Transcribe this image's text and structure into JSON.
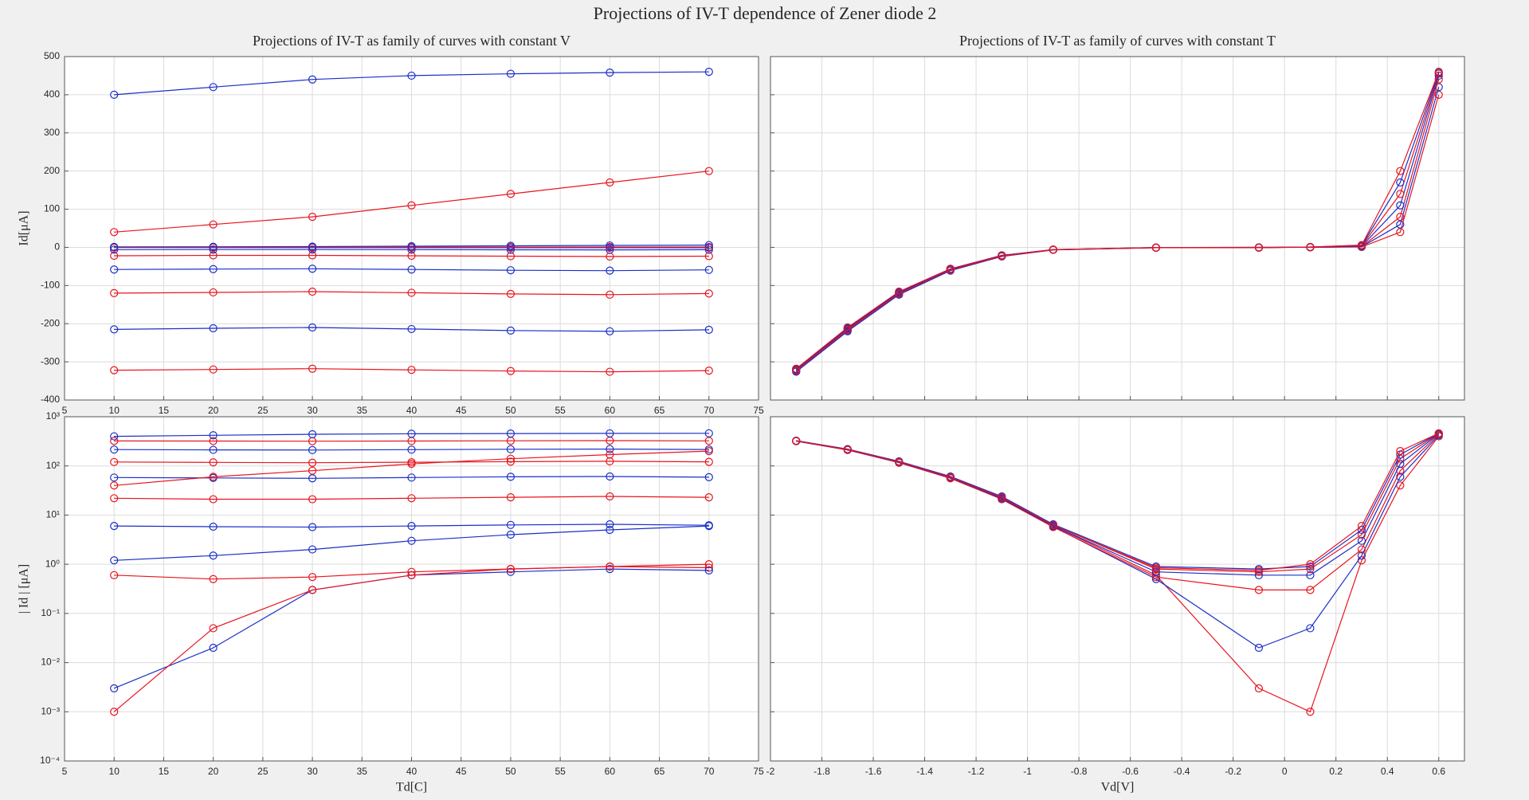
{
  "title": "Projections of IV-T dependence of Zener diode 2",
  "chart_data": [
    {
      "type": "line",
      "title": "Projections of IV-T as family of curves with constant V",
      "xlabel": "Td[C]",
      "ylabel": "Id[μA]",
      "x": [
        10,
        20,
        30,
        40,
        50,
        60,
        70
      ],
      "xlim": [
        5,
        75
      ],
      "xticks": [
        5,
        10,
        15,
        20,
        25,
        30,
        35,
        40,
        45,
        50,
        55,
        60,
        65,
        70,
        75
      ],
      "ylim": [
        -400,
        500
      ],
      "yticks": [
        -400,
        -300,
        -200,
        -100,
        0,
        100,
        200,
        300,
        400,
        500
      ],
      "grid": true,
      "marker": "o",
      "series": [
        {
          "color": "#e8141e",
          "values": [
            -322,
            -320,
            -318,
            -321,
            -324,
            -326,
            -323
          ]
        },
        {
          "color": "#1a2fc8",
          "values": [
            -215,
            -212,
            -210,
            -214,
            -218,
            -220,
            -216
          ]
        },
        {
          "color": "#e8141e",
          "values": [
            -120,
            -118,
            -116,
            -119,
            -122,
            -124,
            -121
          ]
        },
        {
          "color": "#1a2fc8",
          "values": [
            -58,
            -57,
            -56,
            -58,
            -60,
            -61,
            -59
          ]
        },
        {
          "color": "#e8141e",
          "values": [
            -22,
            -21,
            -21,
            -22,
            -23,
            -24,
            -23
          ]
        },
        {
          "color": "#1a2fc8",
          "values": [
            -6,
            -5.8,
            -5.7,
            -6,
            -6.3,
            -6.5,
            -6.2
          ]
        },
        {
          "color": "#e8141e",
          "values": [
            -0.6,
            -0.5,
            -0.55,
            -0.7,
            -0.8,
            -0.9,
            -0.85
          ]
        },
        {
          "color": "#1a2fc8",
          "values": [
            -0.003,
            -0.02,
            -0.3,
            -0.6,
            -0.7,
            -0.8,
            -0.75
          ]
        },
        {
          "color": "#e8141e",
          "values": [
            0.001,
            0.05,
            0.3,
            0.6,
            0.8,
            0.9,
            1
          ]
        },
        {
          "color": "#1a2fc8",
          "values": [
            1.2,
            1.5,
            2,
            3,
            4,
            5,
            6
          ]
        },
        {
          "color": "#e8141e",
          "values": [
            40,
            60,
            80,
            110,
            140,
            170,
            200
          ]
        },
        {
          "color": "#1a2fc8",
          "values": [
            400,
            420,
            440,
            450,
            455,
            458,
            460
          ]
        }
      ]
    },
    {
      "type": "line",
      "title": "Projections of IV-T as family of curves with constant T",
      "x": [
        -1.9,
        -1.7,
        -1.5,
        -1.3,
        -1.1,
        -0.9,
        -0.5,
        -0.1,
        0.1,
        0.3,
        0.45,
        0.6
      ],
      "xlim": [
        -2,
        0.7
      ],
      "xticks": [
        -2,
        -1.8,
        -1.6,
        -1.4,
        -1.2,
        -1,
        -0.8,
        -0.6,
        -0.4,
        -0.2,
        0,
        0.2,
        0.4,
        0.6
      ],
      "show_xtick_labels": false,
      "ylim": [
        -400,
        500
      ],
      "yticks": [
        -400,
        -300,
        -200,
        -100,
        0,
        100,
        200,
        300,
        400,
        500
      ],
      "show_ytick_labels": false,
      "grid": true,
      "marker": "o",
      "series": [
        {
          "color": "#e8141e",
          "values": [
            -322,
            -215,
            -120,
            -58,
            -22,
            -6,
            -0.6,
            -0.003,
            0.001,
            1.2,
            40,
            400
          ]
        },
        {
          "color": "#1a2fc8",
          "values": [
            -320,
            -212,
            -118,
            -57,
            -21,
            -5.8,
            -0.5,
            -0.02,
            0.05,
            1.5,
            60,
            420
          ]
        },
        {
          "color": "#e8141e",
          "values": [
            -318,
            -210,
            -116,
            -56,
            -21,
            -5.7,
            -0.55,
            -0.3,
            0.3,
            2,
            80,
            440
          ]
        },
        {
          "color": "#1a2fc8",
          "values": [
            -321,
            -214,
            -119,
            -58,
            -22,
            -6,
            -0.7,
            -0.6,
            0.6,
            3,
            110,
            450
          ]
        },
        {
          "color": "#e8141e",
          "values": [
            -324,
            -218,
            -122,
            -60,
            -23,
            -6.3,
            -0.8,
            -0.7,
            0.8,
            4,
            140,
            455
          ]
        },
        {
          "color": "#1a2fc8",
          "values": [
            -326,
            -220,
            -124,
            -61,
            -24,
            -6.5,
            -0.9,
            -0.8,
            0.9,
            5,
            170,
            458
          ]
        },
        {
          "color": "#e8141e",
          "values": [
            -323,
            -216,
            -121,
            -59,
            -23,
            -6.2,
            -0.85,
            -0.75,
            1,
            6,
            200,
            460
          ]
        }
      ]
    },
    {
      "type": "line",
      "xlabel": "Td[C]",
      "ylabel": "| Id | [μA]",
      "x": [
        10,
        20,
        30,
        40,
        50,
        60,
        70
      ],
      "xlim": [
        5,
        75
      ],
      "xticks": [
        5,
        10,
        15,
        20,
        25,
        30,
        35,
        40,
        45,
        50,
        55,
        60,
        65,
        70,
        75
      ],
      "yscale": "log",
      "ylim": [
        0.0001,
        1000
      ],
      "yticks": [
        {
          "value": 0.0001,
          "label": "10⁻⁴"
        },
        {
          "value": 0.001,
          "label": "10⁻³"
        },
        {
          "value": 0.01,
          "label": "10⁻²"
        },
        {
          "value": 0.1,
          "label": "10⁻¹"
        },
        {
          "value": 1,
          "label": "10⁰"
        },
        {
          "value": 10,
          "label": "10¹"
        },
        {
          "value": 100,
          "label": "10²"
        },
        {
          "value": 1000,
          "label": "10³"
        }
      ],
      "grid": true,
      "marker": "o",
      "series": [
        {
          "color": "#e8141e",
          "values": [
            322,
            320,
            318,
            321,
            324,
            326,
            323
          ]
        },
        {
          "color": "#1a2fc8",
          "values": [
            215,
            212,
            210,
            214,
            218,
            220,
            216
          ]
        },
        {
          "color": "#e8141e",
          "values": [
            120,
            118,
            116,
            119,
            122,
            124,
            121
          ]
        },
        {
          "color": "#1a2fc8",
          "values": [
            58,
            57,
            56,
            58,
            60,
            61,
            59
          ]
        },
        {
          "color": "#e8141e",
          "values": [
            22,
            21,
            21,
            22,
            23,
            24,
            23
          ]
        },
        {
          "color": "#1a2fc8",
          "values": [
            6,
            5.8,
            5.7,
            6,
            6.3,
            6.5,
            6.2
          ]
        },
        {
          "color": "#e8141e",
          "values": [
            0.6,
            0.5,
            0.55,
            0.7,
            0.8,
            0.9,
            0.85
          ]
        },
        {
          "color": "#1a2fc8",
          "values": [
            0.003,
            0.02,
            0.3,
            0.6,
            0.7,
            0.8,
            0.75
          ]
        },
        {
          "color": "#e8141e",
          "values": [
            0.001,
            0.05,
            0.3,
            0.6,
            0.8,
            0.9,
            1
          ]
        },
        {
          "color": "#1a2fc8",
          "values": [
            1.2,
            1.5,
            2,
            3,
            4,
            5,
            6
          ]
        },
        {
          "color": "#e8141e",
          "values": [
            40,
            60,
            80,
            110,
            140,
            170,
            200
          ]
        },
        {
          "color": "#1a2fc8",
          "values": [
            400,
            420,
            440,
            450,
            455,
            458,
            460
          ]
        }
      ]
    },
    {
      "type": "line",
      "xlabel": "Vd[V]",
      "x": [
        -1.9,
        -1.7,
        -1.5,
        -1.3,
        -1.1,
        -0.9,
        -0.5,
        -0.1,
        0.1,
        0.3,
        0.45,
        0.6
      ],
      "xlim": [
        -2,
        0.7
      ],
      "xticks": [
        -2,
        -1.8,
        -1.6,
        -1.4,
        -1.2,
        -1,
        -0.8,
        -0.6,
        -0.4,
        -0.2,
        0,
        0.2,
        0.4,
        0.6
      ],
      "yscale": "log",
      "ylim": [
        0.0001,
        1000
      ],
      "yticks": [
        0.0001,
        0.001,
        0.01,
        0.1,
        1,
        10,
        100,
        1000
      ],
      "show_ytick_labels": false,
      "grid": true,
      "marker": "o",
      "series": [
        {
          "color": "#e8141e",
          "values": [
            322,
            215,
            120,
            58,
            22,
            6,
            0.6,
            0.003,
            0.001,
            1.2,
            40,
            400
          ]
        },
        {
          "color": "#1a2fc8",
          "values": [
            320,
            212,
            118,
            57,
            21,
            5.8,
            0.5,
            0.02,
            0.05,
            1.5,
            60,
            420
          ]
        },
        {
          "color": "#e8141e",
          "values": [
            318,
            210,
            116,
            56,
            21,
            5.7,
            0.55,
            0.3,
            0.3,
            2,
            80,
            440
          ]
        },
        {
          "color": "#1a2fc8",
          "values": [
            321,
            214,
            119,
            58,
            22,
            6,
            0.7,
            0.6,
            0.6,
            3,
            110,
            450
          ]
        },
        {
          "color": "#e8141e",
          "values": [
            324,
            218,
            122,
            60,
            23,
            6.3,
            0.8,
            0.7,
            0.8,
            4,
            140,
            455
          ]
        },
        {
          "color": "#1a2fc8",
          "values": [
            326,
            220,
            124,
            61,
            24,
            6.5,
            0.9,
            0.8,
            0.9,
            5,
            170,
            458
          ]
        },
        {
          "color": "#e8141e",
          "values": [
            323,
            216,
            121,
            59,
            23,
            6.2,
            0.85,
            0.75,
            1,
            6,
            200,
            460
          ]
        }
      ]
    }
  ]
}
